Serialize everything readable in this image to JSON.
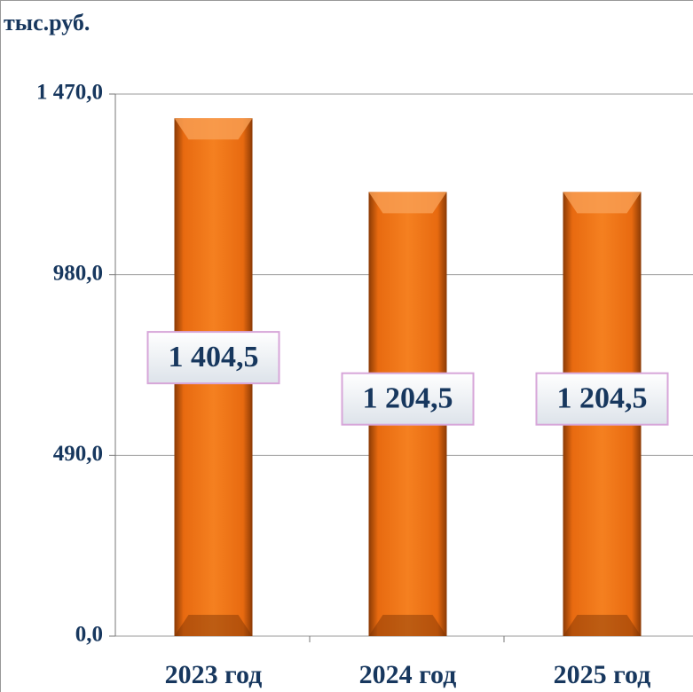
{
  "chart_data": {
    "type": "bar",
    "y_label": "тыс.руб.",
    "categories": [
      "2023 год",
      "2024 год",
      "2025 год"
    ],
    "values": [
      1404.5,
      1204.5,
      1204.5
    ],
    "value_labels": [
      "1 404,5",
      "1 204,5",
      "1 204,5"
    ],
    "color": "#f07a1a",
    "ylim": [
      0,
      1470
    ],
    "yticks": [
      {
        "value": 0,
        "label": "0,0"
      },
      {
        "value": 490,
        "label": "490,0"
      },
      {
        "value": 980,
        "label": "980,0"
      },
      {
        "value": 1470,
        "label": "1 470,0"
      }
    ],
    "grid": true
  }
}
